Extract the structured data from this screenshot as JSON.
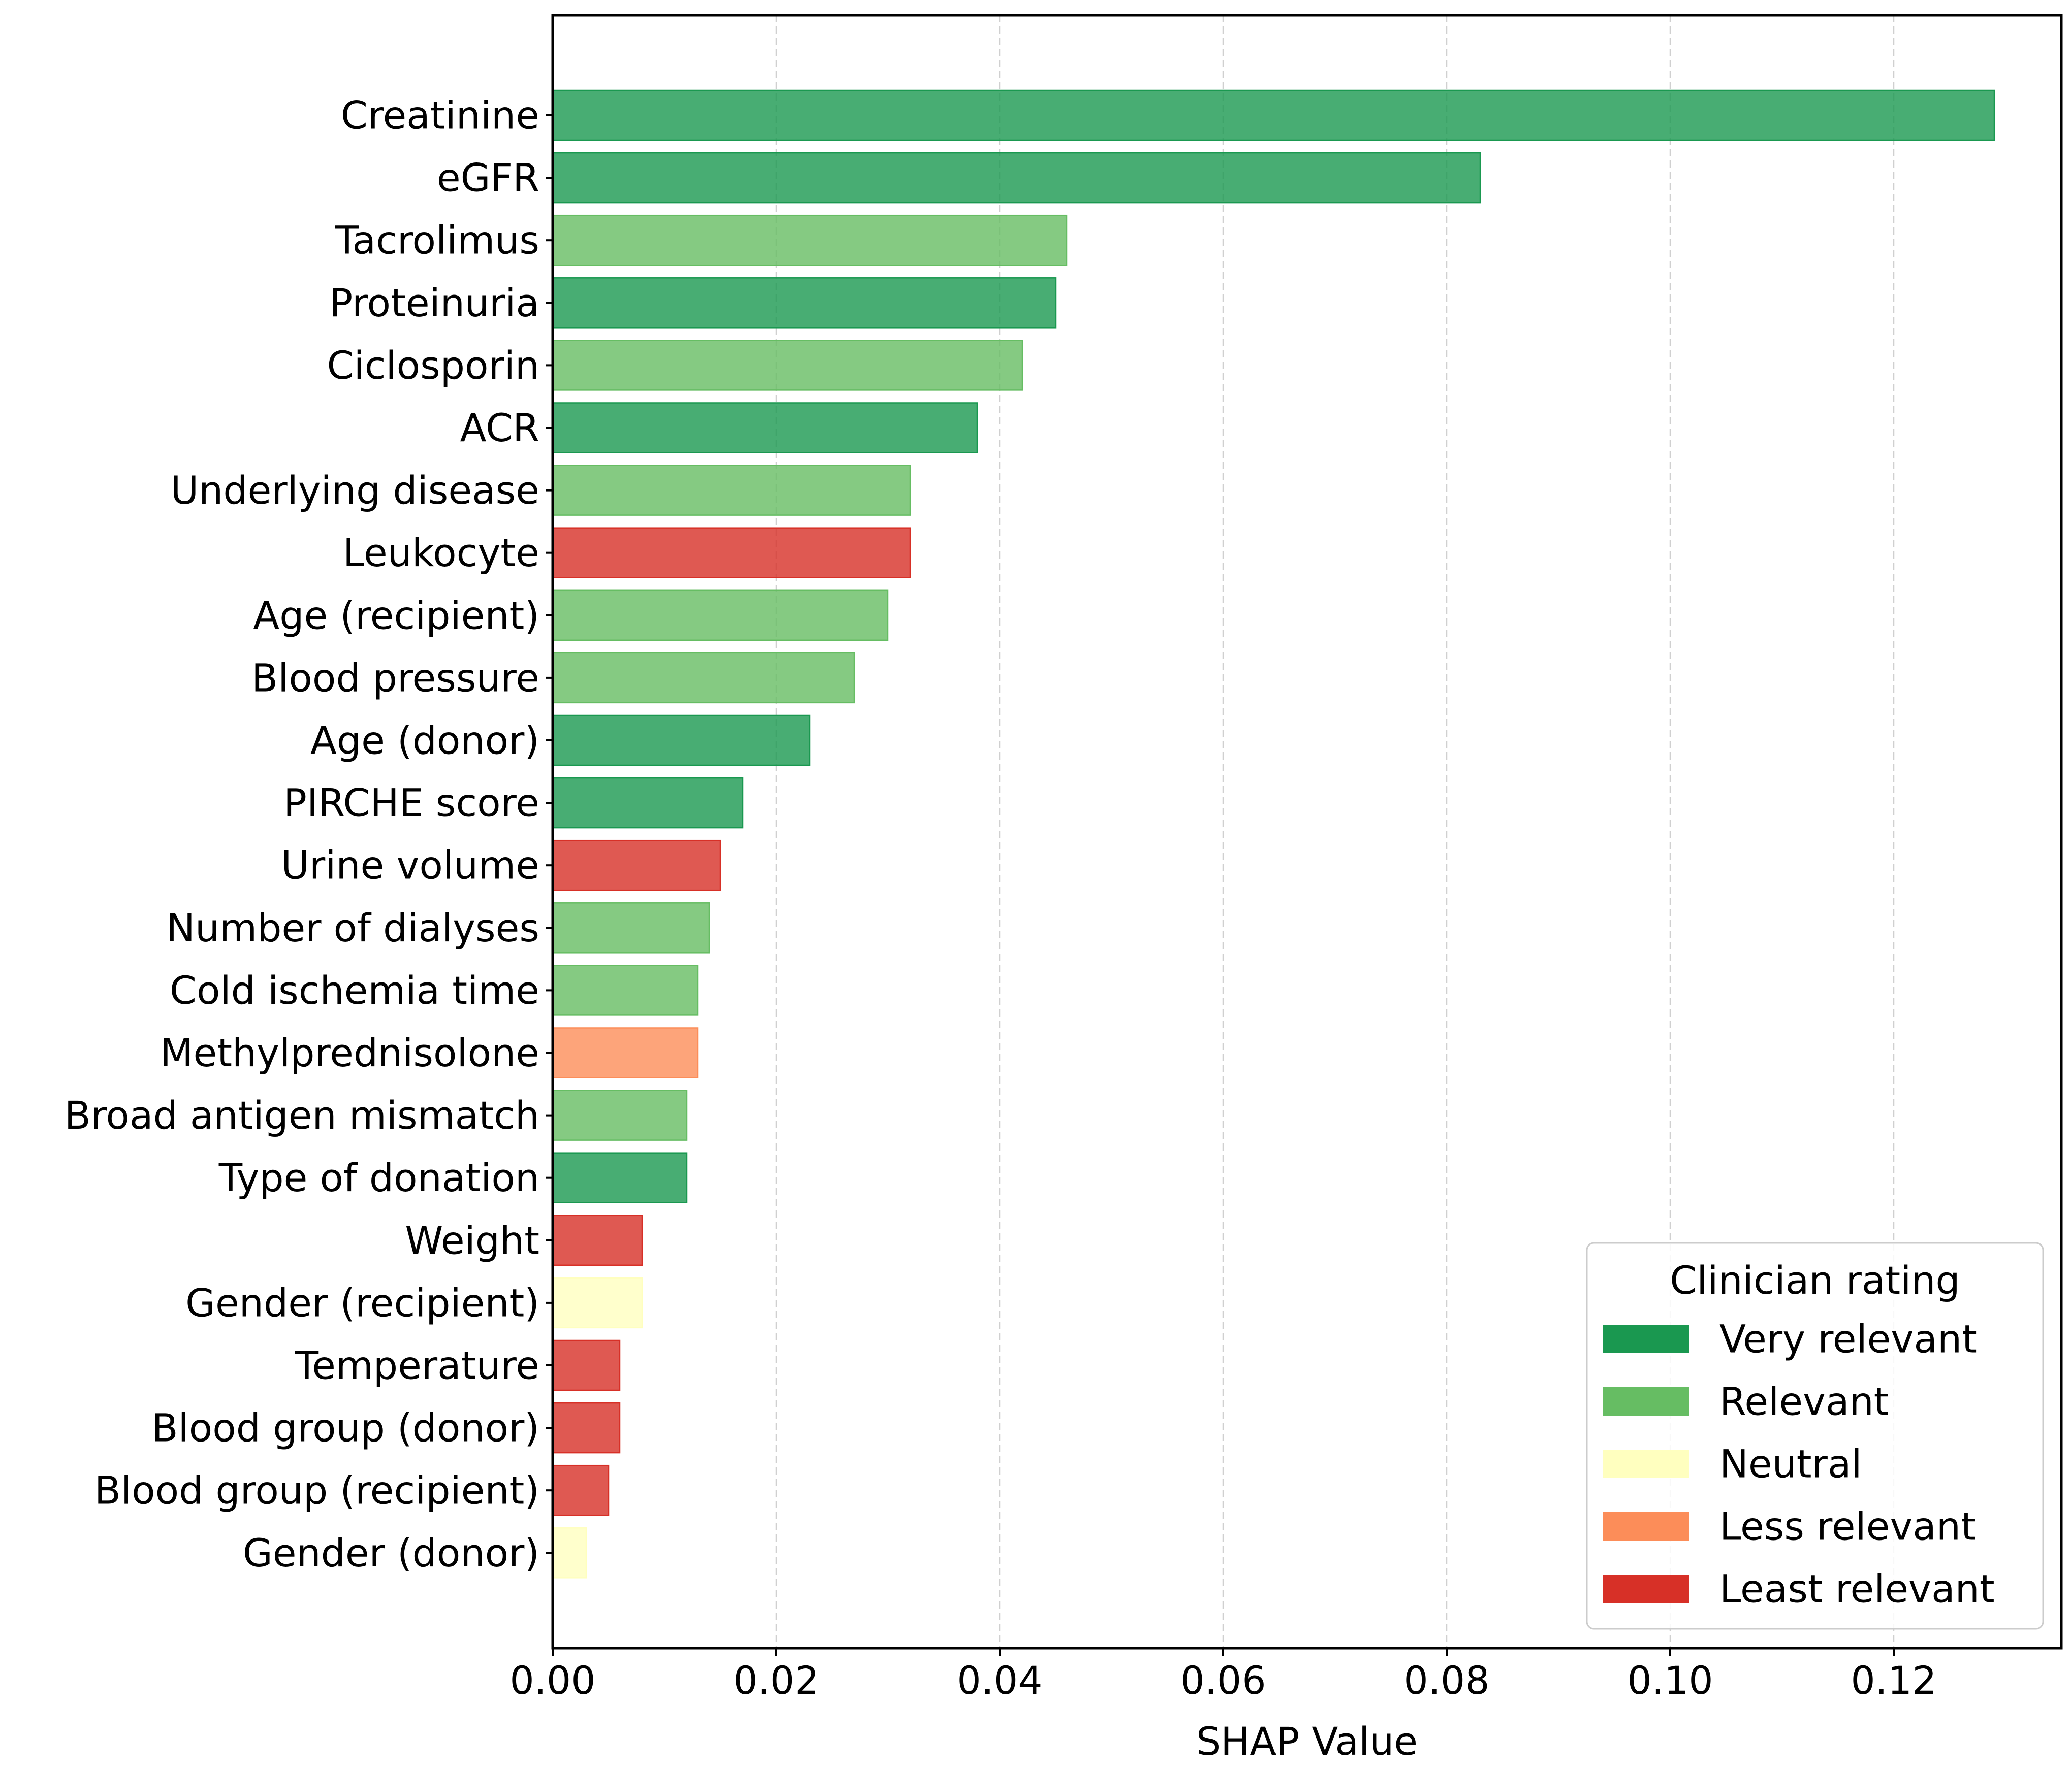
{
  "chart_data": {
    "type": "bar",
    "orientation": "horizontal",
    "title": "",
    "xlabel": "SHAP Value",
    "ylabel": "",
    "xlim": [
      0,
      0.135
    ],
    "xticks": [
      0.0,
      0.02,
      0.04,
      0.06,
      0.08,
      0.1,
      0.12
    ],
    "xtick_labels": [
      "0.00",
      "0.02",
      "0.04",
      "0.06",
      "0.08",
      "0.10",
      "0.12"
    ],
    "grid": "x-axis dashed",
    "legend_position": "bottom-right",
    "categories": [
      "Creatinine",
      "eGFR",
      "Tacrolimus",
      "Proteinuria",
      "Ciclosporin",
      "ACR",
      "Underlying disease",
      "Leukocyte",
      "Age (recipient)",
      "Blood pressure",
      "Age (donor)",
      "PIRCHE score",
      "Urine volume",
      "Number of dialyses",
      "Cold ischemia time",
      "Methylprednisolone",
      "Broad antigen mismatch",
      "Type of donation",
      "Weight",
      "Gender (recipient)",
      "Temperature",
      "Blood group (donor)",
      "Blood group (recipient)",
      "Gender (donor)"
    ],
    "values": [
      0.129,
      0.083,
      0.046,
      0.045,
      0.042,
      0.038,
      0.032,
      0.032,
      0.03,
      0.027,
      0.023,
      0.017,
      0.015,
      0.014,
      0.013,
      0.013,
      0.012,
      0.012,
      0.008,
      0.008,
      0.006,
      0.006,
      0.005,
      0.003
    ],
    "ratings": [
      "Very relevant",
      "Very relevant",
      "Relevant",
      "Very relevant",
      "Relevant",
      "Very relevant",
      "Relevant",
      "Least relevant",
      "Relevant",
      "Relevant",
      "Very relevant",
      "Very relevant",
      "Least relevant",
      "Relevant",
      "Relevant",
      "Less relevant",
      "Relevant",
      "Very relevant",
      "Least relevant",
      "Neutral",
      "Least relevant",
      "Least relevant",
      "Least relevant",
      "Neutral"
    ],
    "legend": {
      "title": "Clinician rating",
      "entries": [
        {
          "label": "Very relevant",
          "color": "#1a9850"
        },
        {
          "label": "Relevant",
          "color": "#66bd63"
        },
        {
          "label": "Neutral",
          "color": "#ffffbf"
        },
        {
          "label": "Less relevant",
          "color": "#fc8d59"
        },
        {
          "label": "Least relevant",
          "color": "#d73027"
        }
      ]
    }
  }
}
